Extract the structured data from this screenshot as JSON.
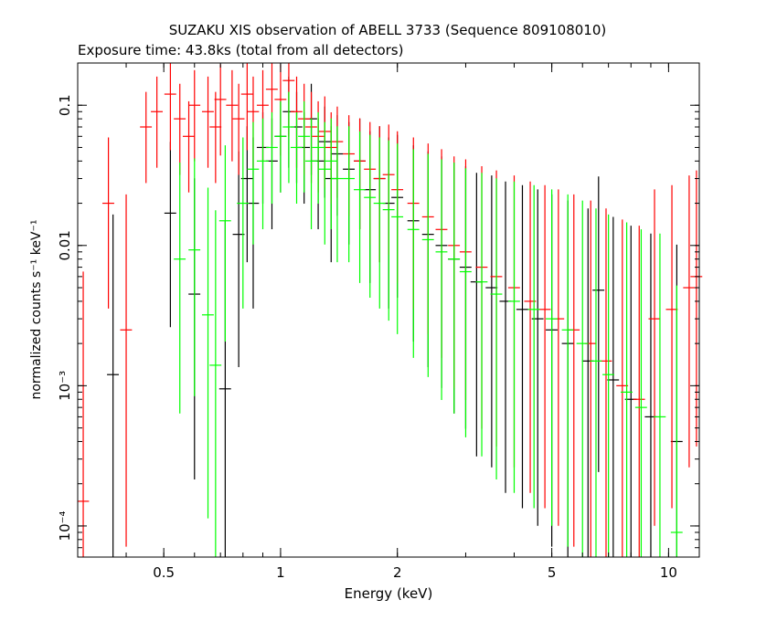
{
  "chart_data": {
    "type": "scatter",
    "title": "SUZAKU XIS observation of ABELL 3733 (Sequence 809108010)",
    "subtitle": "Exposure time: 43.8ks (total from all detectors)",
    "xlabel": "Energy (keV)",
    "ylabel": "normalized counts s⁻¹ keV⁻¹",
    "x_scale": "log",
    "y_scale": "log",
    "xlim": [
      0.3,
      12
    ],
    "ylim": [
      6e-05,
      0.2
    ],
    "x_ticks": [
      {
        "value": 0.5,
        "label": "0.5"
      },
      {
        "value": 1,
        "label": "1"
      },
      {
        "value": 2,
        "label": "2"
      },
      {
        "value": 5,
        "label": "5"
      },
      {
        "value": 10,
        "label": "10"
      }
    ],
    "y_ticks": [
      {
        "value": 0.1,
        "label": "0.1"
      },
      {
        "value": 0.01,
        "label": "0.01"
      },
      {
        "value": 0.001,
        "label": "10⁻³"
      },
      {
        "value": 0.0001,
        "label": "10⁻⁴"
      }
    ],
    "grid": false,
    "legend": "none",
    "series": [
      {
        "color": "#000000",
        "points": [
          [
            0.37,
            0.0012
          ],
          [
            0.52,
            0.017
          ],
          [
            0.6,
            0.0045
          ],
          [
            0.72,
            0.00095
          ],
          [
            0.78,
            0.012
          ],
          [
            0.82,
            0.03
          ],
          [
            0.85,
            0.02
          ],
          [
            0.9,
            0.05
          ],
          [
            0.95,
            0.04
          ],
          [
            1.0,
            0.06
          ],
          [
            1.05,
            0.09
          ],
          [
            1.1,
            0.07
          ],
          [
            1.15,
            0.05
          ],
          [
            1.2,
            0.08
          ],
          [
            1.25,
            0.04
          ],
          [
            1.3,
            0.055
          ],
          [
            1.35,
            0.03
          ],
          [
            1.4,
            0.045
          ],
          [
            1.5,
            0.035
          ],
          [
            1.6,
            0.04
          ],
          [
            1.7,
            0.025
          ],
          [
            1.8,
            0.03
          ],
          [
            1.9,
            0.02
          ],
          [
            2.0,
            0.022
          ],
          [
            2.2,
            0.015
          ],
          [
            2.4,
            0.012
          ],
          [
            2.6,
            0.01
          ],
          [
            2.8,
            0.008
          ],
          [
            3.0,
            0.007
          ],
          [
            3.2,
            0.0055
          ],
          [
            3.5,
            0.005
          ],
          [
            3.8,
            0.004
          ],
          [
            4.2,
            0.0035
          ],
          [
            4.6,
            0.003
          ],
          [
            5.0,
            0.0025
          ],
          [
            5.5,
            0.002
          ],
          [
            6.2,
            0.0015
          ],
          [
            6.6,
            0.0048
          ],
          [
            7.2,
            0.0011
          ],
          [
            8.0,
            0.0008
          ],
          [
            9.0,
            0.0006
          ],
          [
            10.5,
            0.0004
          ]
        ]
      },
      {
        "color": "#ff0000",
        "points": [
          [
            0.31,
            0.00015
          ],
          [
            0.36,
            0.02
          ],
          [
            0.4,
            0.0025
          ],
          [
            0.45,
            0.07
          ],
          [
            0.48,
            0.09
          ],
          [
            0.52,
            0.12
          ],
          [
            0.55,
            0.08
          ],
          [
            0.58,
            0.06
          ],
          [
            0.6,
            0.1
          ],
          [
            0.65,
            0.09
          ],
          [
            0.68,
            0.07
          ],
          [
            0.7,
            0.11
          ],
          [
            0.75,
            0.1
          ],
          [
            0.78,
            0.08
          ],
          [
            0.82,
            0.12
          ],
          [
            0.85,
            0.09
          ],
          [
            0.9,
            0.1
          ],
          [
            0.95,
            0.13
          ],
          [
            1.0,
            0.11
          ],
          [
            1.05,
            0.15
          ],
          [
            1.1,
            0.09
          ],
          [
            1.15,
            0.08
          ],
          [
            1.2,
            0.07
          ],
          [
            1.25,
            0.06
          ],
          [
            1.3,
            0.065
          ],
          [
            1.35,
            0.05
          ],
          [
            1.4,
            0.055
          ],
          [
            1.5,
            0.045
          ],
          [
            1.6,
            0.04
          ],
          [
            1.7,
            0.035
          ],
          [
            1.8,
            0.03
          ],
          [
            1.9,
            0.032
          ],
          [
            2.0,
            0.025
          ],
          [
            2.2,
            0.02
          ],
          [
            2.4,
            0.016
          ],
          [
            2.6,
            0.013
          ],
          [
            2.8,
            0.01
          ],
          [
            3.0,
            0.009
          ],
          [
            3.3,
            0.007
          ],
          [
            3.6,
            0.006
          ],
          [
            4.0,
            0.005
          ],
          [
            4.4,
            0.004
          ],
          [
            4.8,
            0.0035
          ],
          [
            5.2,
            0.003
          ],
          [
            5.7,
            0.0025
          ],
          [
            6.3,
            0.002
          ],
          [
            6.9,
            0.0015
          ],
          [
            7.6,
            0.001
          ],
          [
            8.4,
            0.0008
          ],
          [
            9.2,
            0.003
          ],
          [
            10.2,
            0.0035
          ],
          [
            11.3,
            0.005
          ],
          [
            11.8,
            0.006
          ]
        ]
      },
      {
        "color": "#00ff00",
        "points": [
          [
            0.55,
            0.008
          ],
          [
            0.6,
            0.0093
          ],
          [
            0.65,
            0.0032
          ],
          [
            0.68,
            0.0014
          ],
          [
            0.72,
            0.015
          ],
          [
            0.8,
            0.02
          ],
          [
            0.85,
            0.035
          ],
          [
            0.9,
            0.04
          ],
          [
            0.95,
            0.05
          ],
          [
            1.0,
            0.06
          ],
          [
            1.05,
            0.07
          ],
          [
            1.1,
            0.05
          ],
          [
            1.15,
            0.06
          ],
          [
            1.2,
            0.04
          ],
          [
            1.25,
            0.05
          ],
          [
            1.3,
            0.035
          ],
          [
            1.35,
            0.04
          ],
          [
            1.4,
            0.03
          ],
          [
            1.5,
            0.03
          ],
          [
            1.6,
            0.025
          ],
          [
            1.7,
            0.022
          ],
          [
            1.8,
            0.02
          ],
          [
            1.9,
            0.018
          ],
          [
            2.0,
            0.016
          ],
          [
            2.2,
            0.013
          ],
          [
            2.4,
            0.011
          ],
          [
            2.6,
            0.009
          ],
          [
            2.8,
            0.008
          ],
          [
            3.0,
            0.0065
          ],
          [
            3.3,
            0.0055
          ],
          [
            3.6,
            0.0045
          ],
          [
            4.0,
            0.004
          ],
          [
            4.5,
            0.0035
          ],
          [
            5.0,
            0.003
          ],
          [
            5.5,
            0.0025
          ],
          [
            6.0,
            0.002
          ],
          [
            6.5,
            0.0015
          ],
          [
            7.0,
            0.0012
          ],
          [
            7.8,
            0.0009
          ],
          [
            8.5,
            0.0007
          ],
          [
            9.5,
            0.0006
          ],
          [
            10.5,
            9e-05
          ]
        ]
      }
    ]
  }
}
